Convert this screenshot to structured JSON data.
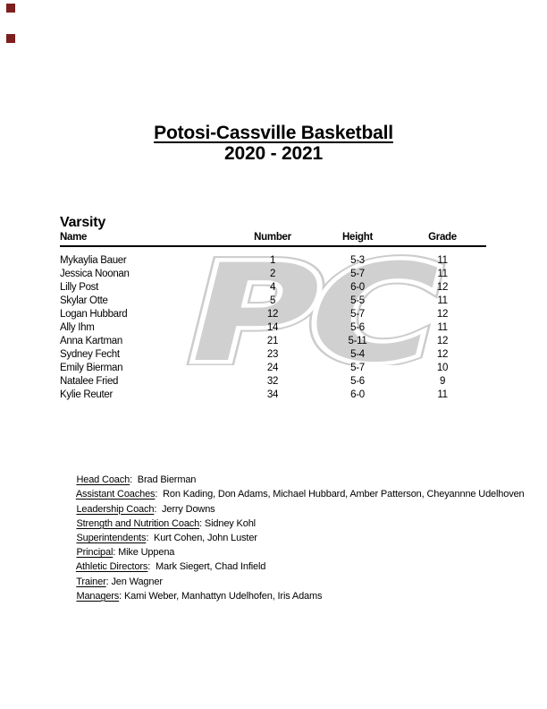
{
  "header": {
    "title": "Potosi-Cassville Basketball",
    "season": "2020 - 2021"
  },
  "annotations": {
    "marker_color": "#7e1f1f"
  },
  "watermark": {
    "text": "PC",
    "fill": "#d0d0d0",
    "outline": "#ffffff",
    "rim": "#cccccc"
  },
  "roster": {
    "section_title": "Varsity",
    "columns": [
      "Name",
      "Number",
      "Height",
      "Grade"
    ],
    "players": [
      {
        "name": "Mykaylia Bauer",
        "number": "1",
        "height": "5-3",
        "grade": "11"
      },
      {
        "name": "Jessica Noonan",
        "number": "2",
        "height": "5-7",
        "grade": "11"
      },
      {
        "name": "Lilly Post",
        "number": "4",
        "height": "6-0",
        "grade": "12"
      },
      {
        "name": "Skylar Otte",
        "number": "5",
        "height": "5-5",
        "grade": "11"
      },
      {
        "name": "Logan Hubbard",
        "number": "12",
        "height": "5-7",
        "grade": "12"
      },
      {
        "name": "Ally Ihm",
        "number": "14",
        "height": "5-6",
        "grade": "11"
      },
      {
        "name": "Anna Kartman",
        "number": "21",
        "height": "5-11",
        "grade": "12"
      },
      {
        "name": "Sydney Fecht",
        "number": "23",
        "height": "5-4",
        "grade": "12"
      },
      {
        "name": "Emily Bierman",
        "number": "24",
        "height": "5-7",
        "grade": "10"
      },
      {
        "name": "Natalee Fried",
        "number": "32",
        "height": "5-6",
        "grade": "9"
      },
      {
        "name": "Kylie Reuter",
        "number": "34",
        "height": "6-0",
        "grade": "11"
      }
    ]
  },
  "staff_meta": {
    "separator": ":"
  },
  "staff": [
    {
      "label": "Head Coach",
      "names": "  Brad Bierman"
    },
    {
      "label": "Assistant Coaches",
      "names": "  Ron Kading, Don Adams, Michael Hubbard, Amber Patterson, Cheyannne Udelhoven"
    },
    {
      "label": "Leadership Coach",
      "names": "  Jerry Downs"
    },
    {
      "label": "Strength and Nutrition Coach",
      "names": " Sidney Kohl"
    },
    {
      "label": "Superintendents",
      "names": "  Kurt Cohen, John Luster"
    },
    {
      "label": "Principal",
      "names": " Mike Uppena"
    },
    {
      "label": "Athletic Directors",
      "names": "  Mark Siegert, Chad Infield"
    },
    {
      "label": "Trainer",
      "names": " Jen Wagner"
    },
    {
      "label": "Managers",
      "names": " Kami Weber, Manhattyn Udelhofen, Iris Adams"
    }
  ]
}
